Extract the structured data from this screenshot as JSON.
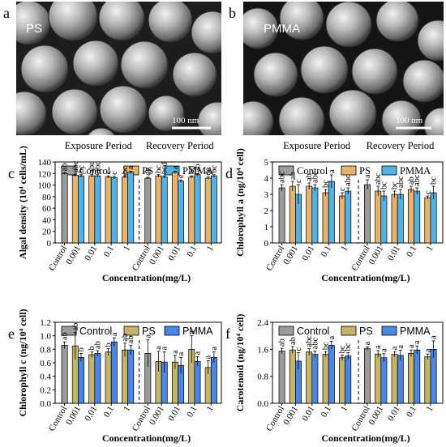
{
  "panels_sem": [
    {
      "letter": "a",
      "label": "PS",
      "scale": "100 nm"
    },
    {
      "letter": "b",
      "label": "PMMA",
      "scale": "100 nm"
    }
  ],
  "colors": {
    "control": "#9b9b9b",
    "ps_orange": "#e8b36b",
    "pmma_blue": "#4fb3e8",
    "ps_olive": "#c5b667",
    "pmma_blue2": "#4a86e8"
  },
  "chart_data": [
    {
      "type": "bar",
      "letter": "c",
      "periods": [
        "Exposure Period",
        "Recovery Period"
      ],
      "ylabel": "Algal density (10⁴ cells/mL)",
      "xlabel": "Concentration(mg/L)",
      "ylim": [
        0,
        140
      ],
      "yticks": [
        0,
        20,
        40,
        60,
        80,
        100,
        120,
        140
      ],
      "categories": [
        "Control",
        "0.001",
        "0.01",
        "0.1",
        "1"
      ],
      "legend": [
        "Control",
        "PS",
        "PMMA"
      ],
      "exposure": {
        "control": {
          "value": 120,
          "err": 1.5,
          "label": "ab"
        },
        "PS": {
          "values": [
            117,
            116,
            114,
            114
          ],
          "err": [
            2,
            2,
            2,
            2
          ],
          "labels": [
            "abc",
            "abc",
            "c",
            "bc"
          ]
        },
        "PMMA": {
          "values": [
            116,
            116,
            113,
            122
          ],
          "err": [
            2,
            2,
            2,
            2
          ],
          "labels": [
            "bc",
            "abc",
            "c",
            "a"
          ]
        }
      },
      "recovery": {
        "control": {
          "value": 112,
          "err": 1.5,
          "label": "de"
        },
        "PS": {
          "values": [
            116,
            122,
            114,
            112
          ],
          "err": [
            2,
            2,
            2,
            2
          ],
          "labels": [
            "bc",
            "a",
            "bd",
            "de"
          ]
        },
        "PMMA": {
          "values": [
            114,
            107,
            118,
            116
          ],
          "err": [
            2,
            2,
            2,
            2
          ],
          "labels": [
            "bcd",
            "e",
            "ab",
            "bc"
          ]
        }
      }
    },
    {
      "type": "bar",
      "letter": "d",
      "periods": [
        "Exposure Period",
        "Recovery Period"
      ],
      "ylabel": "Chlorophyll a (ng/10⁴ cell)",
      "xlabel": "Concentration(mg/L)",
      "ylim": [
        0,
        5
      ],
      "yticks": [
        0,
        1,
        2,
        3,
        4,
        5
      ],
      "categories": [
        "Control",
        "0.001",
        "0.01",
        "0.1",
        "1"
      ],
      "legend": [
        "Control",
        "PS",
        "PMMA"
      ],
      "exposure": {
        "control": {
          "value": 3.4,
          "err": 0.2,
          "label": "abc"
        },
        "PS": {
          "values": [
            3.5,
            3.5,
            3.1,
            2.9
          ],
          "err": [
            0.3,
            0.2,
            0.2,
            0.2
          ],
          "labels": [
            "ab",
            "ab",
            "bc",
            "c"
          ]
        },
        "PMMA": {
          "values": [
            3.0,
            3.4,
            3.8,
            3.2
          ],
          "err": [
            0.6,
            0.2,
            0.4,
            0.2
          ],
          "labels": [
            "c",
            "abc",
            "a",
            "abc"
          ]
        }
      },
      "recovery": {
        "control": {
          "value": 3.6,
          "err": 0.3,
          "label": "a"
        },
        "PS": {
          "values": [
            3.2,
            3.0,
            3.3,
            2.8
          ],
          "err": [
            0.3,
            0.2,
            0.2,
            0.1
          ],
          "labels": [
            "abc",
            "bc",
            "ab",
            "c"
          ]
        },
        "PMMA": {
          "values": [
            2.9,
            3.0,
            3.2,
            3.1
          ],
          "err": [
            0.3,
            0.3,
            0.2,
            0.4
          ],
          "labels": [
            "bc",
            "abc",
            "abc",
            "bc"
          ]
        }
      }
    },
    {
      "type": "bar",
      "letter": "e",
      "periods": [],
      "ylabel": "Chlorophyll c (ng/10⁴ cell)",
      "xlabel": "Concentration(mg/L)",
      "ylim": [
        0,
        1.2
      ],
      "yticks": [
        0,
        0.2,
        0.4,
        0.6,
        0.8,
        1.0,
        1.2
      ],
      "categories": [
        "Control",
        "0.001",
        "0.01",
        "0.1",
        "1"
      ],
      "legend": [
        "Control",
        "PS",
        "PMMA"
      ],
      "exposure": {
        "control": {
          "value": 0.86,
          "err": 0.05,
          "label": "ab"
        },
        "PS": {
          "values": [
            0.85,
            0.72,
            0.76,
            0.79
          ],
          "err": [
            0.2,
            0.04,
            0.05,
            0.1
          ],
          "labels": [
            "ab",
            "b",
            "b",
            "ab"
          ]
        },
        "PMMA": {
          "values": [
            0.68,
            0.74,
            0.91,
            0.79
          ],
          "err": [
            0.06,
            0.04,
            0.06,
            0.07
          ],
          "labels": [
            "b",
            "ab",
            "a",
            "ab"
          ]
        }
      },
      "recovery": {
        "control": {
          "value": 0.74,
          "err": 0.2,
          "label": "a"
        },
        "PS": {
          "values": [
            0.62,
            0.61,
            0.8,
            0.53
          ],
          "err": [
            0.15,
            0.1,
            0.2,
            0.1
          ],
          "labels": [
            "a",
            "a",
            "a",
            "a"
          ]
        },
        "PMMA": {
          "values": [
            0.61,
            0.56,
            0.62,
            0.68
          ],
          "err": [
            0.15,
            0.12,
            0.07,
            0.08
          ],
          "labels": [
            "a",
            "a",
            "a",
            "a"
          ]
        }
      }
    },
    {
      "type": "bar",
      "letter": "f",
      "periods": [],
      "ylabel": "Carotenoid (ng/10⁴ cell)",
      "xlabel": "Concentration(mg/L)",
      "ylim": [
        0,
        2.4
      ],
      "yticks": [
        0,
        0.8,
        1.6,
        2.4
      ],
      "categories": [
        "Control",
        "0.001",
        "0.01",
        "0.1",
        "1"
      ],
      "legend": [
        "Control",
        "PS",
        "PMMA"
      ],
      "exposure": {
        "control": {
          "value": 1.55,
          "err": 0.08,
          "label": "ab"
        },
        "PS": {
          "values": [
            1.58,
            1.52,
            1.45,
            1.35
          ],
          "err": [
            0.1,
            0.1,
            0.08,
            0.08
          ],
          "labels": [
            "ab",
            "abc",
            "bc",
            "bc"
          ]
        },
        "PMMA": {
          "values": [
            1.25,
            1.45,
            1.72,
            1.4
          ],
          "err": [
            0.25,
            0.1,
            0.12,
            0.1
          ],
          "labels": [
            "c",
            "abc",
            "a",
            "bc"
          ]
        }
      },
      "recovery": {
        "control": {
          "value": 1.62,
          "err": 0.05,
          "label": "a"
        },
        "PS": {
          "values": [
            1.46,
            1.45,
            1.48,
            1.38
          ],
          "err": [
            0.1,
            0.08,
            0.1,
            0.08
          ],
          "labels": [
            "a",
            "a",
            "a",
            "a"
          ]
        },
        "PMMA": {
          "values": [
            1.35,
            1.42,
            1.58,
            1.6
          ],
          "err": [
            0.12,
            0.15,
            0.12,
            0.25
          ],
          "labels": [
            "a",
            "a",
            "a",
            "a"
          ]
        }
      }
    }
  ]
}
